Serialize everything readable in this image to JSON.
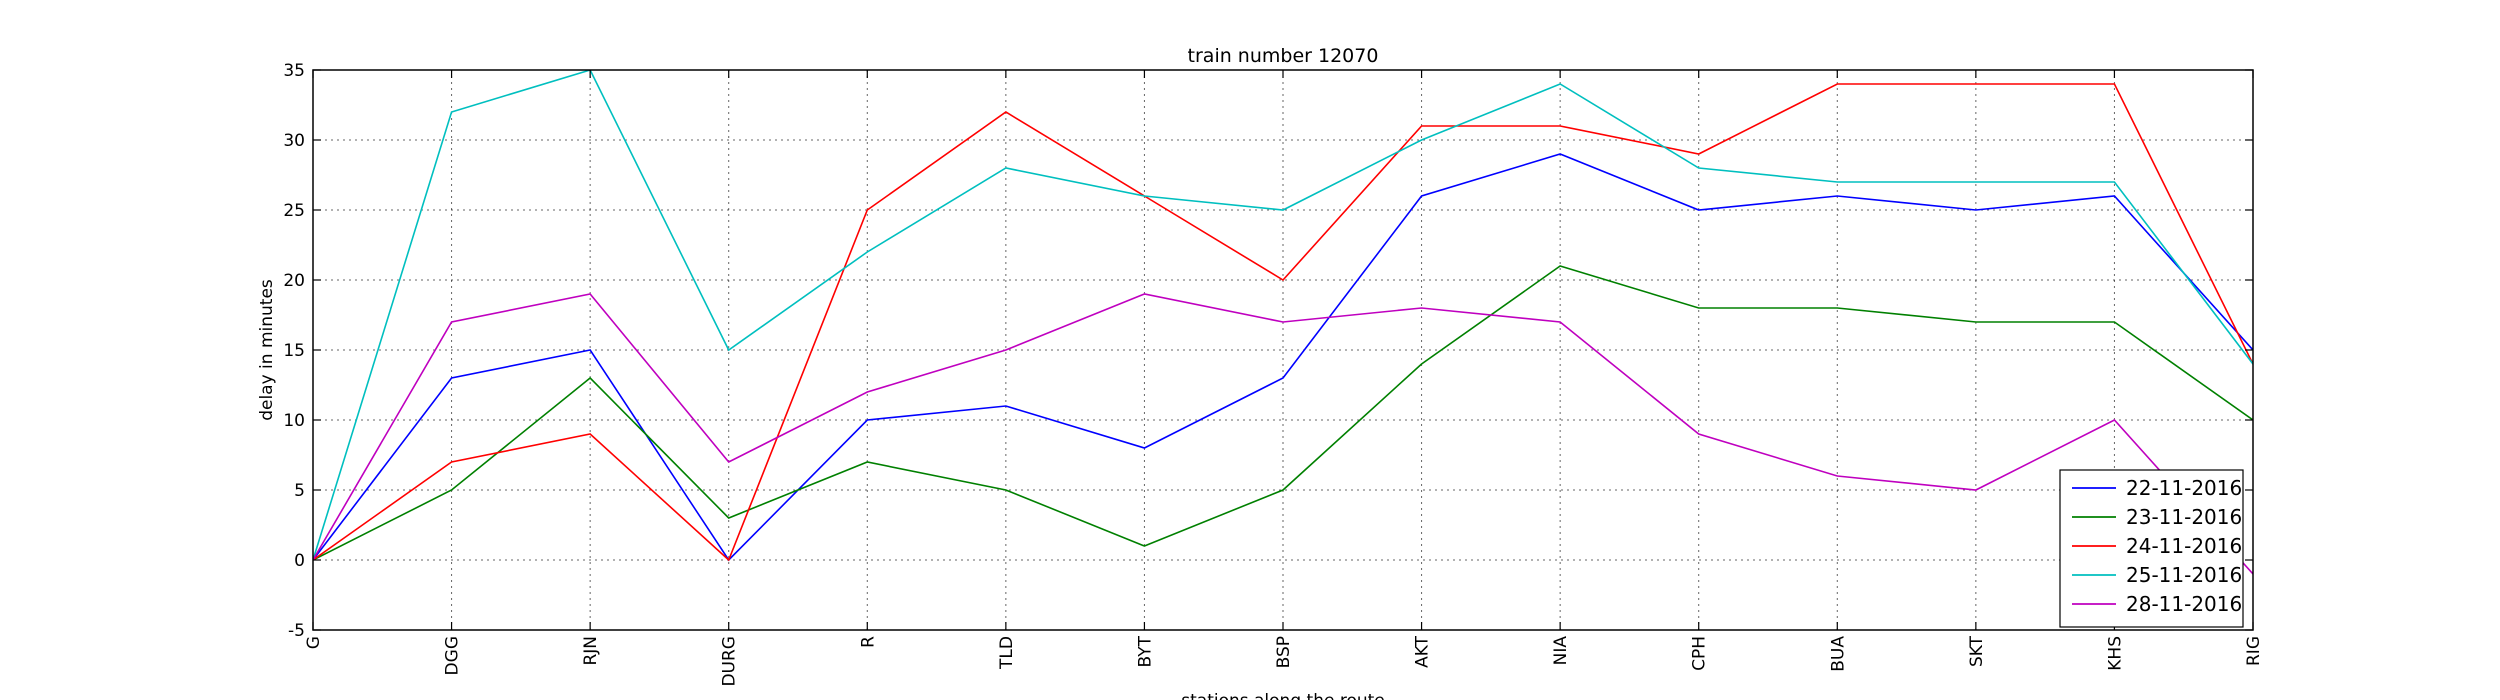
{
  "chart_data": {
    "type": "line",
    "title": "train number 12070",
    "xlabel": "stations along the route",
    "ylabel": "delay in minutes",
    "categories": [
      "G",
      "DGG",
      "RJN",
      "DURG",
      "R",
      "TLD",
      "BYT",
      "BSP",
      "AKT",
      "NIA",
      "CPH",
      "BUA",
      "SKT",
      "KHS",
      "RIG"
    ],
    "ylim": [
      -5,
      35
    ],
    "yticks": [
      -5,
      0,
      5,
      10,
      15,
      20,
      25,
      30,
      35
    ],
    "grid": true,
    "legend_position": "lower-right",
    "series": [
      {
        "name": "22-11-2016",
        "color": "#0000ff",
        "values": [
          0,
          13,
          15,
          0,
          10,
          11,
          8,
          13,
          26,
          29,
          25,
          26,
          25,
          26,
          15
        ]
      },
      {
        "name": "23-11-2016",
        "color": "#008000",
        "values": [
          0,
          5,
          13,
          3,
          7,
          5,
          1,
          5,
          14,
          21,
          18,
          18,
          17,
          17,
          10
        ]
      },
      {
        "name": "24-11-2016",
        "color": "#ff0000",
        "values": [
          0,
          7,
          9,
          0,
          25,
          32,
          26,
          20,
          31,
          31,
          29,
          34,
          34,
          34,
          14
        ]
      },
      {
        "name": "25-11-2016",
        "color": "#00bfbf",
        "values": [
          0,
          32,
          35,
          15,
          22,
          28,
          26,
          25,
          30,
          34,
          28,
          27,
          27,
          27,
          14
        ]
      },
      {
        "name": "28-11-2016",
        "color": "#bf00bf",
        "values": [
          0,
          17,
          19,
          7,
          12,
          15,
          19,
          17,
          18,
          17,
          9,
          6,
          5,
          10,
          -1
        ]
      }
    ]
  }
}
